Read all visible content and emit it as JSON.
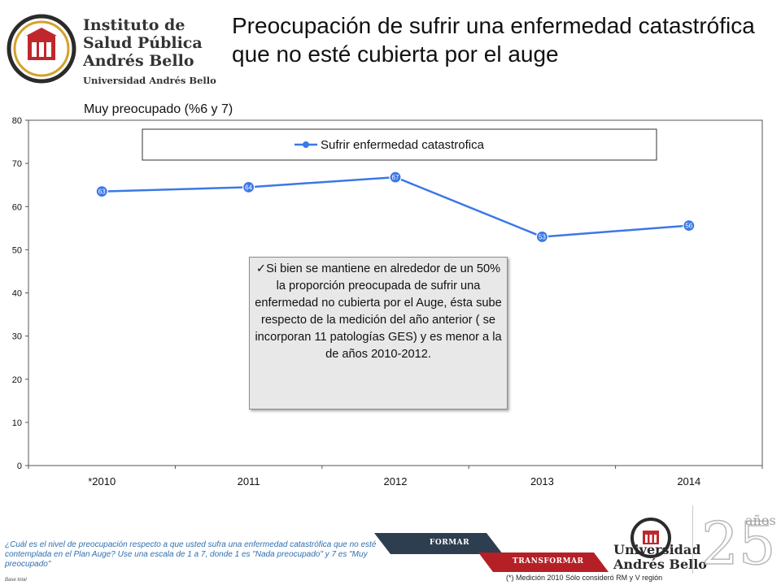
{
  "header": {
    "logo_lines": [
      "Instituto de",
      "Salud Pública",
      "Andrés Bello"
    ],
    "logo_sub": "Universidad Andrés Bello",
    "title": "Preocupación de sufrir una enfermedad catastrófica que no esté cubierta por el auge",
    "subtitle": "Muy preocupado  (%6 y 7)"
  },
  "chart_data": {
    "type": "line",
    "categories": [
      "*2010",
      "2011",
      "2012",
      "2013",
      "2014"
    ],
    "series": [
      {
        "name": "Sufrir enfermedad catastrofica",
        "values": [
          63.5,
          64.5,
          66.8,
          53.0,
          55.6
        ],
        "labels": [
          "63",
          "64",
          "67",
          "53",
          "56"
        ],
        "color": "#3b78e7"
      }
    ],
    "ylim": [
      0,
      80
    ],
    "yticks": [
      0,
      10,
      20,
      30,
      40,
      50,
      60,
      70,
      80
    ],
    "grid": false,
    "legend": "top"
  },
  "annotation": {
    "check": "✓",
    "text": "Si bien se mantiene en alrededor de un 50% la proporción preocupada de sufrir una enfermedad no cubierta por el Auge, ésta sube respecto de la medición del año anterior ( se incorporan 11 patologías GES) y es menor a la de años 2010-2012."
  },
  "footer": {
    "question": "¿Cuál es el nivel de preocupación respecto a que usted sufra una enfermedad catastrófica que no esté contemplada en el Plan Auge? Use una escala de 1 a 7, donde 1 es \"Nada preocupado\" y 7 es \"Muy preocupado\"",
    "base": "Base total",
    "footnote": "(*) Medición 2010 Sólo consideró RM y V región",
    "band_formar": "FORMAR",
    "band_transformar": "TRANSFORMAR",
    "unab_lines": [
      "Universidad",
      "Andrés Bello"
    ],
    "anios_label": "años"
  },
  "colors": {
    "series": "#3b78e7",
    "brand_red": "#c0272d",
    "band_dark": "#2d3e50",
    "band_red": "#b52026"
  }
}
